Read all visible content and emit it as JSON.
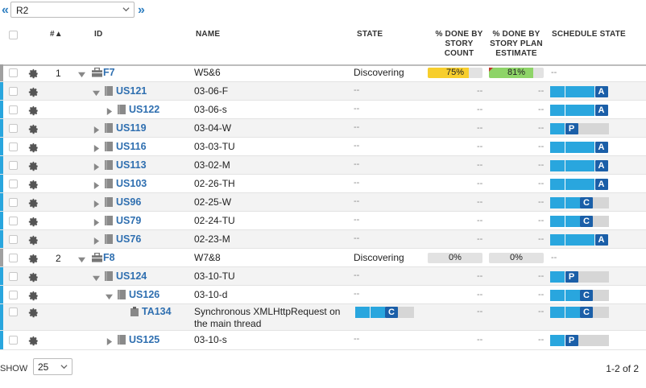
{
  "topbar": {
    "prev_icon": "«",
    "next_icon": "»",
    "release_value": "R2"
  },
  "header": {
    "rank": "#▲",
    "id": "ID",
    "name": "NAME",
    "state": "STATE",
    "pct_count": [
      "% DONE BY",
      "STORY",
      "COUNT"
    ],
    "pct_plan": [
      "% DONE BY",
      "STORY PLAN",
      "ESTIMATE"
    ],
    "schedule": "SCHEDULE STATE"
  },
  "colors": {
    "stripe_story": "#29a6de",
    "stripe_feature": "#a0a0a0",
    "seg_blue": "#29a6de",
    "seg_gray": "#d6d6d6",
    "badge": "#1b5fa8",
    "bar_yellow": "#f7ce2c",
    "bar_green": "#8ed468",
    "link": "#2f6fb0"
  },
  "rows": [
    {
      "type": "feature",
      "rank": "1",
      "id": "F7",
      "name": "W5&6",
      "state": "Discovering",
      "pct_count": "75%",
      "pct_count_value": 0.75,
      "pct_plan": "81%",
      "pct_plan_value": 0.81,
      "schedule": "--"
    },
    {
      "type": "story",
      "id": "US121",
      "name": "03-06-F",
      "state": "--",
      "pct_count": "--",
      "pct_plan": "--",
      "schedule_done": 3,
      "badge": "A"
    },
    {
      "type": "story",
      "id": "US122",
      "name": "03-06-s",
      "state": "--",
      "pct_count": "--",
      "pct_plan": "--",
      "schedule_done": 3,
      "badge": "A"
    },
    {
      "type": "story",
      "id": "US119",
      "name": "03-04-W",
      "state": "--",
      "pct_count": "--",
      "pct_plan": "--",
      "schedule_done": 1,
      "badge": "P"
    },
    {
      "type": "story",
      "id": "US116",
      "name": "03-03-TU",
      "state": "--",
      "pct_count": "--",
      "pct_plan": "--",
      "schedule_done": 3,
      "badge": "A"
    },
    {
      "type": "story",
      "id": "US113",
      "name": "03-02-M",
      "state": "--",
      "pct_count": "--",
      "pct_plan": "--",
      "schedule_done": 3,
      "badge": "A"
    },
    {
      "type": "story",
      "id": "US103",
      "name": "02-26-TH",
      "state": "--",
      "pct_count": "--",
      "pct_plan": "--",
      "schedule_done": 3,
      "badge": "A"
    },
    {
      "type": "story",
      "id": "US96",
      "name": "02-25-W",
      "state": "--",
      "pct_count": "--",
      "pct_plan": "--",
      "schedule_done": 2,
      "badge": "C"
    },
    {
      "type": "story",
      "id": "US79",
      "name": "02-24-TU",
      "state": "--",
      "pct_count": "--",
      "pct_plan": "--",
      "schedule_done": 2,
      "badge": "C"
    },
    {
      "type": "story",
      "id": "US76",
      "name": "02-23-M",
      "state": "--",
      "pct_count": "--",
      "pct_plan": "--",
      "schedule_done": 3,
      "badge": "A"
    },
    {
      "type": "feature",
      "rank": "2",
      "id": "F8",
      "name": "W7&8",
      "state": "Discovering",
      "pct_count": "0%",
      "pct_count_value": 0,
      "pct_plan": "0%",
      "pct_plan_value": 0,
      "schedule": "--"
    },
    {
      "type": "story",
      "id": "US124",
      "name": "03-10-TU",
      "state": "--",
      "pct_count": "--",
      "pct_plan": "--",
      "schedule_done": 1,
      "badge": "P"
    },
    {
      "type": "story",
      "id": "US126",
      "name": "03-10-d",
      "state": "--",
      "pct_count": "--",
      "pct_plan": "--",
      "schedule_done": 2,
      "badge": "C"
    },
    {
      "type": "task",
      "id": "TA134",
      "name": "Synchronous XMLHttpRequest on the main thread",
      "state_done": 2,
      "state_badge": "C",
      "pct_count": "--",
      "pct_plan": "--",
      "schedule_done": 2,
      "badge": "C"
    },
    {
      "type": "story",
      "id": "US125",
      "name": "03-10-s",
      "state": "--",
      "pct_count": "--",
      "pct_plan": "--",
      "schedule_done": 1,
      "badge": "P"
    }
  ],
  "footer": {
    "show_label": "SHOW",
    "page_size": "25",
    "pager_text": "1-2 of 2"
  }
}
